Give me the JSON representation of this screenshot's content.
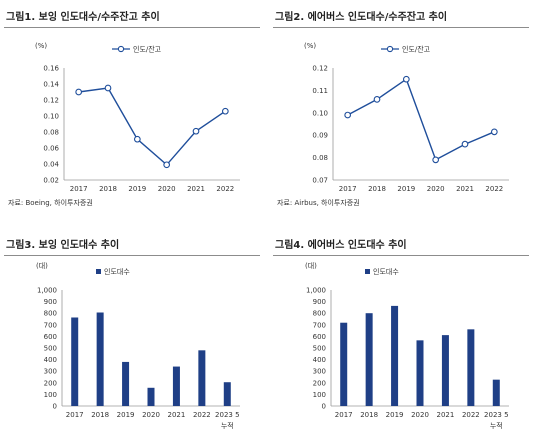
{
  "chart_data": [
    {
      "type": "line",
      "title": "그림1. 보잉 인도대수/수주잔고 추이",
      "unit_label": "(%)",
      "x": [
        "2017",
        "2018",
        "2019",
        "2020",
        "2021",
        "2022"
      ],
      "series": [
        {
          "name": "인도/잔고",
          "values": [
            0.13,
            0.135,
            0.071,
            0.039,
            0.081,
            0.106
          ]
        }
      ],
      "yticks": [
        "0.02",
        "0.04",
        "0.06",
        "0.08",
        "0.10",
        "0.12",
        "0.14",
        "0.16"
      ],
      "ylim": [
        0.02,
        0.16
      ],
      "legend": "top-center",
      "source": "자료: Boeing, 하이투자증권",
      "color": "#1f4e9b"
    },
    {
      "type": "line",
      "title": "그림2. 에어버스 인도대수/수주잔고 추이",
      "unit_label": "(%)",
      "x": [
        "2017",
        "2018",
        "2019",
        "2020",
        "2021",
        "2022"
      ],
      "series": [
        {
          "name": "인도/잔고",
          "values": [
            0.099,
            0.106,
            0.115,
            0.079,
            0.086,
            0.0915
          ]
        }
      ],
      "yticks": [
        "0.07",
        "0.08",
        "0.09",
        "0.10",
        "0.11",
        "0.12"
      ],
      "ylim": [
        0.07,
        0.12
      ],
      "legend": "top-center",
      "source": "자료: Airbus, 하이투자증권",
      "color": "#1f4e9b"
    },
    {
      "type": "bar",
      "title": "그림3. 보잉 인도대수 추이",
      "unit_label": "(대)",
      "categories": [
        "2017",
        "2018",
        "2019",
        "2020",
        "2021",
        "2022",
        "2023 5"
      ],
      "category_sublabels": [
        "",
        "",
        "",
        "",
        "",
        "",
        "누적"
      ],
      "series": [
        {
          "name": "인도대수",
          "values": [
            763,
            806,
            380,
            157,
            340,
            480,
            205
          ]
        }
      ],
      "yticks": [
        "0",
        "100",
        "200",
        "300",
        "400",
        "500",
        "600",
        "700",
        "800",
        "900",
        "1,000"
      ],
      "ylim": [
        0,
        1000
      ],
      "legend": "top-left",
      "color": "#1f3f86"
    },
    {
      "type": "bar",
      "title": "그림4. 에어버스 인도대수 추이",
      "unit_label": "(대)",
      "categories": [
        "2017",
        "2018",
        "2019",
        "2020",
        "2021",
        "2022",
        "2023 5"
      ],
      "category_sublabels": [
        "",
        "",
        "",
        "",
        "",
        "",
        "누적"
      ],
      "series": [
        {
          "name": "인도대수",
          "values": [
            718,
            800,
            863,
            566,
            611,
            661,
            227
          ]
        }
      ],
      "yticks": [
        "0",
        "100",
        "200",
        "300",
        "400",
        "500",
        "600",
        "700",
        "800",
        "900",
        "1,000"
      ],
      "ylim": [
        0,
        1000
      ],
      "legend": "top-left",
      "color": "#1f3f86"
    }
  ]
}
